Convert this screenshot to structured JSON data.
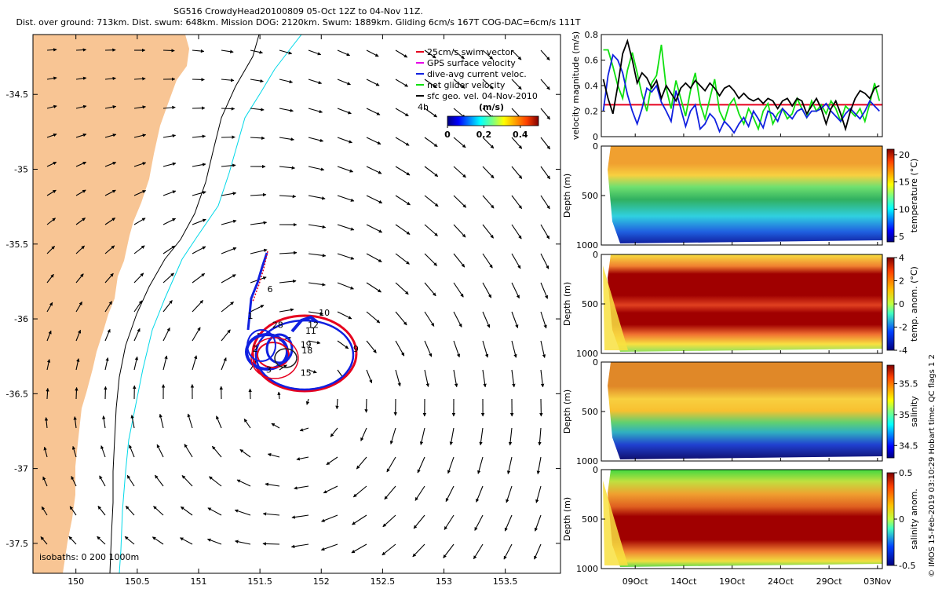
{
  "header": {
    "line1": "SG516 CrowdyHead20100809 05-Oct 12Z to 04-Nov 11Z.",
    "line2": "Dist. over ground: 713km. Dist. swum: 648km. Mission DOG: 2120km. Swum: 1889km. Gliding 6cm/s 167T COG-DAC=6cm/s 111T"
  },
  "credit": "© IMOS 15-Feb-2019 03:10:29 Hobart time. QC flags 1  2",
  "colors": {
    "land": "#f8c594",
    "swim": "#e6001e",
    "gps": "#e600e6",
    "dac": "#1020e0",
    "net": "#10e010",
    "geo": "#000000",
    "iso200": "#000000",
    "iso1000": "#00d8e8"
  },
  "chart_data": [
    {
      "type": "map",
      "id": "track_map",
      "xticks": [
        "150",
        "150.5",
        "151",
        "151.5",
        "152",
        "152.5",
        "153",
        "153.5"
      ],
      "xtick_values": [
        150,
        150.5,
        151,
        151.5,
        152,
        152.5,
        153,
        153.5
      ],
      "yticks": [
        "-34.5",
        "-35",
        "-35.5",
        "-36",
        "-36.5",
        "-37",
        "-37.5"
      ],
      "ytick_values": [
        -34.5,
        -35,
        -35.5,
        -36,
        -36.5,
        -37,
        -37.5
      ],
      "xlim": [
        149.65,
        153.95
      ],
      "ylim": [
        -37.7,
        -34.1
      ],
      "legend": [
        {
          "label": "25cm/s swim vector",
          "color": "#e6001e"
        },
        {
          "label": "GPS surface velocity",
          "color": "#e600e6"
        },
        {
          "label": "dive-avg current veloc.",
          "color": "#1020e0"
        },
        {
          "label": "net glider velocity",
          "color": "#10e010"
        },
        {
          "label": "sfc geo. vel. 04-Nov-2010",
          "color": "#000000"
        }
      ],
      "legend_note": "4h",
      "colorbar": {
        "label": "(m/s)",
        "ticks": [
          "0",
          "0.2",
          "0.4"
        ],
        "tick_values": [
          0,
          0.2,
          0.4
        ],
        "range": [
          0,
          0.5
        ]
      },
      "isobaths_label": "isobaths: 0   200  1000m",
      "day_labels": [
        {
          "text": "6",
          "lon": 151.56,
          "lat": -35.82
        },
        {
          "text": "28",
          "lon": 151.6,
          "lat": -36.06
        },
        {
          "text": "12",
          "lon": 151.89,
          "lat": -36.06
        },
        {
          "text": "11",
          "lon": 151.87,
          "lat": -36.1
        },
        {
          "text": "10",
          "lon": 151.98,
          "lat": -35.98
        },
        {
          "text": "19",
          "lon": 151.83,
          "lat": -36.19
        },
        {
          "text": "18",
          "lon": 151.84,
          "lat": -36.23
        },
        {
          "text": "2",
          "lon": 151.44,
          "lat": -36.22
        },
        {
          "text": "9",
          "lon": 152.26,
          "lat": -36.22
        },
        {
          "text": "15",
          "lon": 151.83,
          "lat": -36.38
        },
        {
          "text": "3",
          "lon": 151.55,
          "lat": -36.36
        },
        {
          "text": "1",
          "lon": 151.4,
          "lat": -36.0
        }
      ]
    },
    {
      "type": "line",
      "id": "velocity_magnitude",
      "ylabel": "velocity magnitude (m/s)",
      "ylim": [
        0,
        0.8
      ],
      "yticks": [
        "0",
        "0.2",
        "0.4",
        "0.6",
        "0.8"
      ],
      "ytick_values": [
        0,
        0.2,
        0.4,
        0.6,
        0.8
      ],
      "xlim_days": [
        5.5,
        34.5
      ],
      "series": [
        {
          "name": "swim speed",
          "color": "#e6001e",
          "x": [
            5.7,
            34.5
          ],
          "values": [
            0.25,
            0.25
          ]
        },
        {
          "name": "net glider velocity",
          "color": "#10e010",
          "x": [
            5.7,
            6.2,
            6.7,
            7.2,
            7.7,
            8.2,
            8.7,
            9.2,
            9.7,
            10.2,
            10.7,
            11.2,
            11.7,
            12.2,
            12.7,
            13.2,
            13.7,
            14.2,
            14.7,
            15.2,
            15.7,
            16.2,
            16.7,
            17.2,
            17.7,
            18.2,
            18.7,
            19.2,
            19.7,
            20.2,
            20.7,
            21.2,
            21.7,
            22.2,
            22.7,
            23.2,
            23.7,
            24.2,
            24.7,
            25.2,
            25.7,
            26.2,
            26.7,
            27.2,
            27.7,
            28.2,
            28.7,
            29.2,
            29.7,
            30.2,
            30.7,
            31.2,
            31.7,
            32.2,
            32.7,
            33.2,
            33.7,
            34.2
          ],
          "values": [
            0.68,
            0.68,
            0.55,
            0.4,
            0.3,
            0.52,
            0.66,
            0.5,
            0.33,
            0.2,
            0.42,
            0.48,
            0.72,
            0.38,
            0.22,
            0.44,
            0.3,
            0.16,
            0.36,
            0.5,
            0.26,
            0.14,
            0.3,
            0.45,
            0.2,
            0.12,
            0.25,
            0.3,
            0.18,
            0.1,
            0.22,
            0.15,
            0.06,
            0.2,
            0.26,
            0.1,
            0.18,
            0.22,
            0.14,
            0.18,
            0.3,
            0.22,
            0.15,
            0.28,
            0.2,
            0.25,
            0.18,
            0.28,
            0.22,
            0.12,
            0.24,
            0.2,
            0.16,
            0.22,
            0.12,
            0.26,
            0.42,
            0.28
          ]
        },
        {
          "name": "dive-avg current veloc.",
          "color": "#1020e0",
          "x": [
            5.7,
            6.2,
            6.7,
            7.2,
            7.7,
            8.2,
            8.7,
            9.2,
            9.7,
            10.2,
            10.7,
            11.2,
            11.7,
            12.2,
            12.7,
            13.2,
            13.7,
            14.2,
            14.7,
            15.2,
            15.7,
            16.2,
            16.7,
            17.2,
            17.7,
            18.2,
            18.7,
            19.2,
            19.7,
            20.2,
            20.7,
            21.2,
            21.7,
            22.2,
            22.7,
            23.2,
            23.7,
            24.2,
            24.7,
            25.2,
            25.7,
            26.2,
            26.7,
            27.2,
            27.7,
            28.2,
            28.7,
            29.2,
            29.7,
            30.2,
            30.7,
            31.2,
            31.7,
            32.2,
            32.7,
            33.2,
            33.7,
            34.2
          ],
          "values": [
            0.2,
            0.48,
            0.64,
            0.6,
            0.5,
            0.33,
            0.2,
            0.1,
            0.22,
            0.38,
            0.35,
            0.4,
            0.27,
            0.2,
            0.12,
            0.36,
            0.22,
            0.08,
            0.2,
            0.25,
            0.06,
            0.1,
            0.18,
            0.14,
            0.04,
            0.12,
            0.08,
            0.03,
            0.1,
            0.15,
            0.08,
            0.2,
            0.14,
            0.07,
            0.2,
            0.18,
            0.12,
            0.22,
            0.18,
            0.14,
            0.2,
            0.22,
            0.15,
            0.2,
            0.2,
            0.22,
            0.26,
            0.2,
            0.16,
            0.12,
            0.18,
            0.22,
            0.18,
            0.14,
            0.2,
            0.28,
            0.24,
            0.2
          ]
        },
        {
          "name": "sfc geo. vel.",
          "color": "#000000",
          "x": [
            5.7,
            6.2,
            6.7,
            7.2,
            7.7,
            8.2,
            8.7,
            9.2,
            9.7,
            10.2,
            10.7,
            11.2,
            11.7,
            12.2,
            12.7,
            13.2,
            13.7,
            14.2,
            14.7,
            15.2,
            15.7,
            16.2,
            16.7,
            17.2,
            17.7,
            18.2,
            18.7,
            19.2,
            19.7,
            20.2,
            20.7,
            21.2,
            21.7,
            22.2,
            22.7,
            23.2,
            23.7,
            24.2,
            24.7,
            25.2,
            25.7,
            26.2,
            26.7,
            27.2,
            27.7,
            28.2,
            28.7,
            29.2,
            29.7,
            30.2,
            30.7,
            31.2,
            31.7,
            32.2,
            32.7,
            33.2,
            33.7,
            34.2
          ],
          "values": [
            0.45,
            0.3,
            0.18,
            0.4,
            0.65,
            0.75,
            0.6,
            0.42,
            0.5,
            0.46,
            0.38,
            0.44,
            0.3,
            0.4,
            0.34,
            0.28,
            0.38,
            0.42,
            0.38,
            0.44,
            0.4,
            0.36,
            0.42,
            0.38,
            0.32,
            0.38,
            0.4,
            0.36,
            0.3,
            0.34,
            0.3,
            0.28,
            0.3,
            0.26,
            0.3,
            0.28,
            0.22,
            0.28,
            0.3,
            0.24,
            0.3,
            0.28,
            0.18,
            0.24,
            0.3,
            0.22,
            0.1,
            0.22,
            0.28,
            0.18,
            0.06,
            0.2,
            0.3,
            0.36,
            0.34,
            0.3,
            0.38,
            0.4
          ]
        }
      ]
    },
    {
      "type": "heatmap",
      "id": "temperature",
      "ylabel": "Depth (m)",
      "cbar_label": "temperature (°C)",
      "cbar_range": [
        4,
        21
      ],
      "cbar_ticks": [
        "5",
        "10",
        "15",
        "20"
      ],
      "cbar_tick_values": [
        5,
        10,
        15,
        20
      ],
      "ylim": [
        0,
        1000
      ],
      "yticks": [
        "0",
        "500",
        "1000"
      ],
      "ytick_values": [
        0,
        500,
        1000
      ]
    },
    {
      "type": "heatmap",
      "id": "temperature_anomaly",
      "ylabel": "Depth (m)",
      "cbar_label": "temp. anom. (°C)",
      "cbar_range": [
        -4,
        4
      ],
      "cbar_ticks": [
        "4",
        "2",
        "0",
        "-2",
        "-4"
      ],
      "cbar_tick_values": [
        4,
        2,
        0,
        -2,
        -4
      ],
      "ylim": [
        0,
        1000
      ],
      "yticks": [
        "0",
        "500",
        "1000"
      ],
      "ytick_values": [
        0,
        500,
        1000
      ]
    },
    {
      "type": "heatmap",
      "id": "salinity",
      "ylabel": "Depth (m)",
      "cbar_label": "salinity",
      "cbar_range": [
        34.3,
        35.8
      ],
      "cbar_ticks": [
        "35.5",
        "35",
        "34.5"
      ],
      "cbar_tick_values": [
        35.5,
        35,
        34.5
      ],
      "ylim": [
        0,
        1000
      ],
      "yticks": [
        "0",
        "500",
        "1000"
      ],
      "ytick_values": [
        0,
        500,
        1000
      ]
    },
    {
      "type": "heatmap",
      "id": "salinity_anomaly",
      "ylabel": "Depth (m)",
      "cbar_label": "salinity anom.",
      "cbar_range": [
        -0.5,
        0.5
      ],
      "cbar_ticks": [
        "0.5",
        "0",
        "-0.5"
      ],
      "cbar_tick_values": [
        0.5,
        0,
        -0.5
      ],
      "ylim": [
        0,
        1000
      ],
      "yticks": [
        "0",
        "500",
        "1000"
      ],
      "ytick_values": [
        0,
        500,
        1000
      ],
      "xticks": [
        "09Oct",
        "14Oct",
        "19Oct",
        "24Oct",
        "29Oct",
        "03Nov"
      ],
      "xtick_days": [
        9,
        14,
        19,
        24,
        29,
        34
      ]
    }
  ]
}
